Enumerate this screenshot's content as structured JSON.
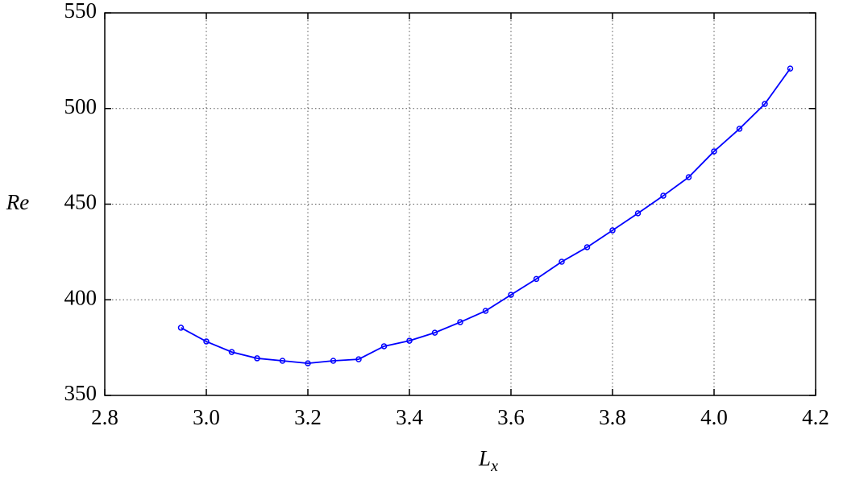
{
  "chart_data": {
    "type": "line",
    "y_label": "Re",
    "x_label": {
      "text": "L",
      "subscript": "x"
    },
    "x": [
      2.95,
      3.0,
      3.05,
      3.1,
      3.15,
      3.2,
      3.25,
      3.3,
      3.35,
      3.4,
      3.45,
      3.5,
      3.55,
      3.6,
      3.65,
      3.7,
      3.75,
      3.8,
      3.85,
      3.9,
      3.95,
      4.0,
      4.05,
      4.1,
      4.15
    ],
    "series": [
      {
        "color": "#0000ff",
        "marker": "circle",
        "values": [
          385.4,
          378.2,
          372.7,
          369.4,
          368.1,
          366.8,
          368.1,
          368.9,
          375.7,
          378.6,
          382.8,
          388.3,
          394.2,
          402.6,
          410.9,
          419.9,
          427.5,
          436.3,
          445.2,
          454.4,
          464.1,
          477.6,
          489.4,
          502.4,
          520.9
        ]
      }
    ],
    "xlim": [
      2.8,
      4.2
    ],
    "xticks": [
      2.8,
      {
        "value": 3,
        "label": "3.0"
      },
      3.2,
      3.4,
      3.6,
      3.8,
      {
        "value": 4,
        "label": "4.0"
      },
      4.2
    ],
    "ylim": [
      350,
      550
    ],
    "yticks": [
      350,
      400,
      450,
      500,
      550
    ],
    "grid": true
  }
}
